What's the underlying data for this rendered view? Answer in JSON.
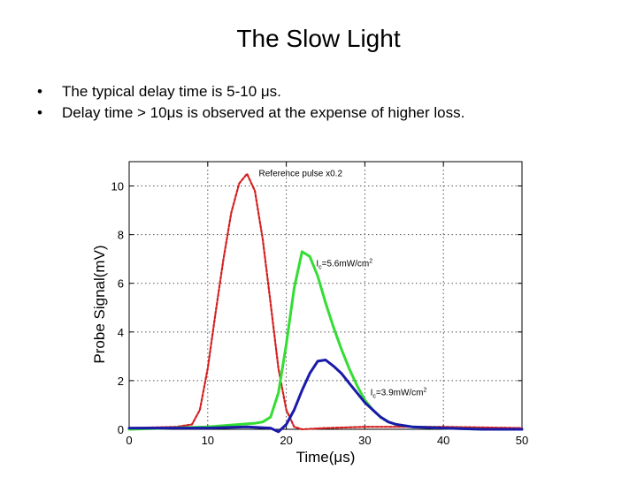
{
  "slide": {
    "title": "The Slow Light",
    "bullets": [
      "The typical delay time is 5-10 μs.",
      "Delay time > 10μs is observed at the expense of higher loss."
    ]
  },
  "chart_data": {
    "type": "line",
    "xlabel": "Time(μs)",
    "ylabel": "Probe Signal(mV)",
    "xlim": [
      0,
      50
    ],
    "ylim": [
      0,
      11
    ],
    "xticks": [
      0,
      10,
      20,
      30,
      40,
      50
    ],
    "yticks": [
      0,
      2,
      4,
      6,
      8,
      10
    ],
    "grid": true,
    "series": [
      {
        "name": "Reference pulse x0.2",
        "color": "#d42020",
        "style": "dashed",
        "x": [
          0,
          6,
          8,
          9,
          10,
          11,
          12,
          13,
          14,
          15,
          16,
          17,
          18,
          19,
          20,
          21,
          22,
          25,
          30,
          40,
          50
        ],
        "y": [
          0.05,
          0.1,
          0.2,
          0.8,
          2.5,
          4.8,
          7.0,
          8.9,
          10.1,
          10.5,
          9.8,
          7.8,
          5.2,
          2.5,
          0.8,
          0.1,
          0.0,
          0.05,
          0.1,
          0.1,
          0.05
        ]
      },
      {
        "name": "Ic=5.6mW/cm2",
        "color": "#33dd33",
        "style": "solid",
        "x": [
          0,
          5,
          10,
          12,
          14,
          16,
          17,
          18,
          19,
          20,
          21,
          22,
          23,
          24,
          25,
          26,
          27,
          28,
          29,
          30,
          31,
          32,
          33,
          34,
          36,
          40,
          45,
          50
        ],
        "y": [
          0.0,
          0.05,
          0.1,
          0.15,
          0.2,
          0.25,
          0.3,
          0.5,
          1.5,
          3.5,
          5.8,
          7.3,
          7.1,
          6.3,
          5.2,
          4.2,
          3.3,
          2.5,
          1.8,
          1.2,
          0.8,
          0.5,
          0.3,
          0.2,
          0.1,
          0.05,
          0.0,
          0.0
        ]
      },
      {
        "name": "Ic=3.9mW/cm2",
        "color": "#1a1aaa",
        "style": "solid",
        "x": [
          0,
          10,
          15,
          18,
          19,
          20,
          21,
          22,
          23,
          24,
          25,
          26,
          27,
          28,
          29,
          30,
          31,
          32,
          33,
          34,
          36,
          40,
          45,
          50
        ],
        "y": [
          0.05,
          0.05,
          0.1,
          0.05,
          -0.1,
          0.2,
          0.8,
          1.6,
          2.3,
          2.8,
          2.85,
          2.6,
          2.3,
          1.9,
          1.5,
          1.1,
          0.8,
          0.5,
          0.3,
          0.2,
          0.1,
          0.05,
          0.0,
          0.0
        ]
      }
    ],
    "annotations": [
      {
        "text": "Reference pulse x0.2",
        "x": 16.5,
        "y": 10.4
      },
      {
        "text": "I",
        "sub": "c",
        "rest": "=5.6mW/cm",
        "sup": "2",
        "x": 23.8,
        "y": 6.7
      },
      {
        "text": "I",
        "sub": "c",
        "rest": "=3.9mW/cm",
        "sup": "2",
        "x": 30.7,
        "y": 1.4
      }
    ]
  }
}
